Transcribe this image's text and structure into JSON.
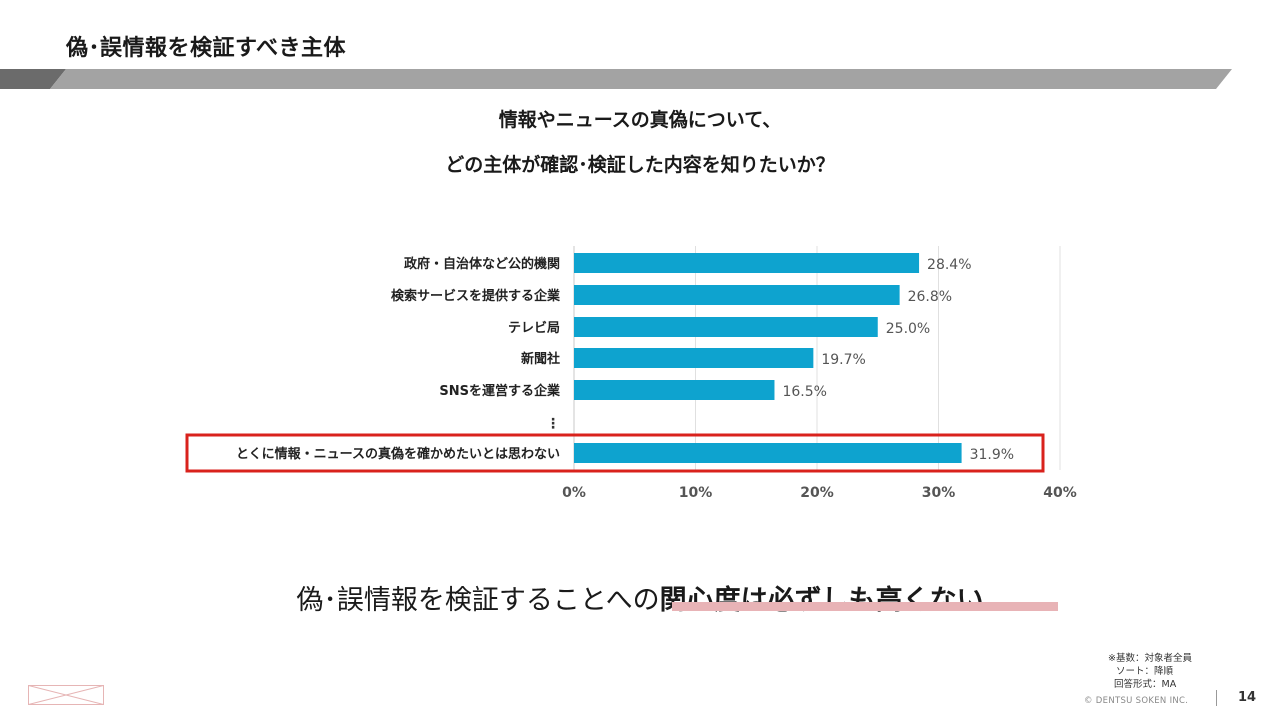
{
  "slide": {
    "title": "偽･誤情報を検証すべき主体",
    "question_line1": "情報やニュースの真偽について、",
    "question_line2": "どの主体が確認･検証した内容を知りたいか？"
  },
  "colors": {
    "bar": "#0ea3cf",
    "highlight_box": "#d9221c",
    "title_band": "#a3a3a3",
    "title_band_dark": "#6b6b6b",
    "underline": "#e8b3b6"
  },
  "chart_data": {
    "type": "bar",
    "orientation": "horizontal",
    "categories": [
      "政府・自治体など公的機関",
      "検索サービスを提供する企業",
      "テレビ局",
      "新聞社",
      "SNSを運営する企業",
      "とくに情報・ニュースの真偽を確かめたいとは思わない"
    ],
    "values": [
      28.4,
      26.8,
      25.0,
      19.7,
      16.5,
      31.9
    ],
    "value_labels": [
      "28.4%",
      "26.8%",
      "25.0%",
      "19.7%",
      "16.5%",
      "31.9%"
    ],
    "xlim": [
      0,
      40
    ],
    "ticks": [
      0,
      10,
      20,
      30,
      40
    ],
    "tick_labels": [
      "0%",
      "10%",
      "20%",
      "30%",
      "40%"
    ],
    "ellipsis": "⋮",
    "highlighted_category": "とくに情報・ニュースの真偽を確かめたいとは思わない",
    "grid": true
  },
  "conclusion": {
    "plain": "偽･誤情報を検証することへの",
    "emphasis": "関心度は必ずしも高くない"
  },
  "notes": {
    "base": "※基数：対象者全員",
    "sort": "ソート：降順",
    "format": "回答形式：MA"
  },
  "footer": {
    "copyright": "© DENTSU SOKEN INC.",
    "page_number": "14"
  }
}
